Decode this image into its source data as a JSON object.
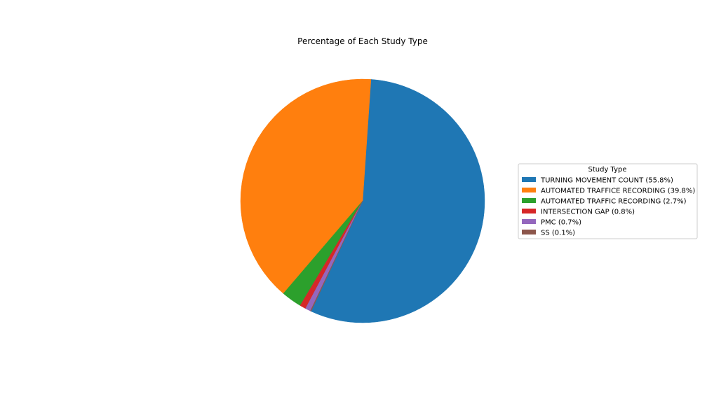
{
  "chart_data": {
    "type": "pie",
    "title": "Percentage of Each Study Type",
    "legend_title": "Study Type",
    "legend_placement": "center-right",
    "start_angle_degrees": 245,
    "direction": "counterclockwise",
    "slices": [
      {
        "label": "TURNING MOVEMENT COUNT (55.8%)",
        "name": "TURNING MOVEMENT COUNT",
        "value": 55.8,
        "color": "#1f77b4"
      },
      {
        "label": "AUTOMATED TRAFFICE RECORDING (39.8%)",
        "name": "AUTOMATED TRAFFICE RECORDING",
        "value": 39.8,
        "color": "#ff7f0e"
      },
      {
        "label": "AUTOMATED TRAFFIC RECORDING (2.7%)",
        "name": "AUTOMATED TRAFFIC RECORDING",
        "value": 2.7,
        "color": "#2ca02c"
      },
      {
        "label": "INTERSECTION GAP (0.8%)",
        "name": "INTERSECTION GAP",
        "value": 0.8,
        "color": "#d62728"
      },
      {
        "label": "PMC (0.7%)",
        "name": "PMC",
        "value": 0.7,
        "color": "#9467bd"
      },
      {
        "label": "SS (0.1%)",
        "name": "SS",
        "value": 0.1,
        "color": "#8c564b"
      }
    ]
  }
}
